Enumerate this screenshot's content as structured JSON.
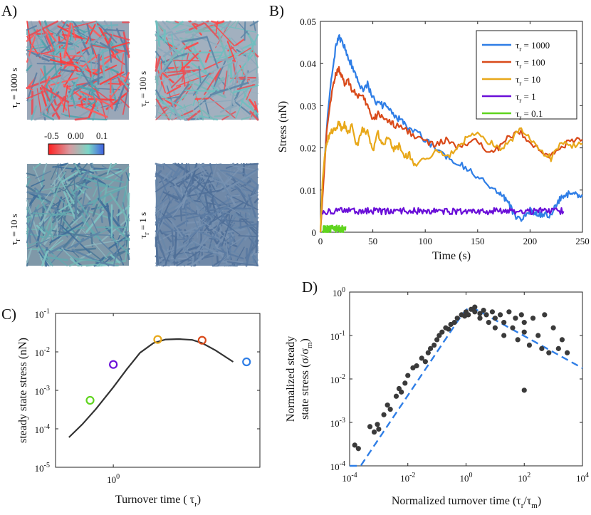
{
  "panels": {
    "A": {
      "label": "A)",
      "snapshots": [
        {
          "label": "τr = 1000 s",
          "label_main": "τ",
          "label_sub": "r",
          "label_rest": " = 1000 s",
          "dominant": "mixed-red"
        },
        {
          "label": "τr = 100 s",
          "label_main": "τ",
          "label_sub": "r",
          "label_rest": " = 100 s",
          "dominant": "mixed"
        },
        {
          "label": "τr = 10 s",
          "label_main": "τ",
          "label_sub": "r",
          "label_rest": " = 10 s",
          "dominant": "teal"
        },
        {
          "label": "τr = 1 s",
          "label_main": "τ",
          "label_sub": "r",
          "label_rest": " = 1 s",
          "dominant": "slate"
        }
      ],
      "colorbar": {
        "ticks": [
          "-0.5",
          "0.00",
          "0.1"
        ],
        "colors": [
          "#ff2020",
          "#d89aa0",
          "#7ad6c6",
          "#3f5fe0"
        ]
      }
    },
    "B": {
      "label": "B)"
    },
    "C": {
      "label": "C)"
    },
    "D": {
      "label": "D)"
    }
  },
  "chart_data": [
    {
      "panel": "B",
      "type": "line",
      "xlabel": "Time (s)",
      "ylabel": "Stress (nN)",
      "xlim": [
        0,
        250
      ],
      "ylim": [
        0,
        0.05
      ],
      "xticks": [
        0,
        50,
        100,
        150,
        200,
        250
      ],
      "yticks": [
        0,
        0.01,
        0.02,
        0.03,
        0.04,
        0.05
      ],
      "ytick_labels": [
        "0",
        "0.01",
        "0.02",
        "0.03",
        "0.04",
        "0.05"
      ],
      "legend_position": "top-right",
      "series": [
        {
          "name": "τr = 1000",
          "legend_main": "τ",
          "legend_sub": "r",
          "legend_rest": " = 1000",
          "color": "#2f7ee6",
          "x": [
            0,
            3,
            7,
            11,
            15,
            18,
            21,
            25,
            30,
            35,
            40,
            45,
            50,
            55,
            60,
            65,
            70,
            75,
            80,
            90,
            100,
            110,
            120,
            130,
            140,
            150,
            160,
            170,
            175,
            180,
            185,
            190,
            195,
            200,
            205,
            210,
            215,
            220,
            225,
            230,
            235,
            240,
            245,
            250
          ],
          "y": [
            0,
            0.014,
            0.028,
            0.038,
            0.0445,
            0.046,
            0.0452,
            0.0425,
            0.0395,
            0.0365,
            0.034,
            0.035,
            0.032,
            0.0305,
            0.03,
            0.0295,
            0.0275,
            0.027,
            0.0255,
            0.024,
            0.022,
            0.02,
            0.018,
            0.0168,
            0.015,
            0.013,
            0.0115,
            0.009,
            0.0085,
            0.0068,
            0.004,
            0.0028,
            0.0042,
            0.0052,
            0.0044,
            0.004,
            0.0043,
            0.0042,
            0.0062,
            0.0085,
            0.009,
            0.0092,
            0.0088,
            0.0085
          ]
        },
        {
          "name": "τr = 100",
          "legend_main": "τ",
          "legend_sub": "r",
          "legend_rest": " = 100",
          "color": "#d94a1a",
          "x": [
            0,
            3,
            6,
            10,
            13,
            16,
            18,
            20,
            23,
            26,
            30,
            35,
            40,
            45,
            50,
            55,
            60,
            65,
            70,
            80,
            90,
            100,
            110,
            120,
            130,
            140,
            150,
            160,
            170,
            180,
            190,
            200,
            210,
            220,
            230,
            240,
            250
          ],
          "y": [
            0,
            0.012,
            0.024,
            0.032,
            0.036,
            0.0382,
            0.0388,
            0.037,
            0.035,
            0.0365,
            0.034,
            0.0325,
            0.032,
            0.03,
            0.0265,
            0.028,
            0.0275,
            0.026,
            0.0255,
            0.0245,
            0.023,
            0.0215,
            0.0205,
            0.022,
            0.02,
            0.021,
            0.0215,
            0.0195,
            0.02,
            0.0225,
            0.024,
            0.0215,
            0.019,
            0.018,
            0.0205,
            0.0215,
            0.022
          ]
        },
        {
          "name": "τr = 10",
          "legend_main": "τ",
          "legend_sub": "r",
          "legend_rest": " = 10",
          "color": "#e8a81a",
          "x": [
            0,
            2,
            4,
            6,
            9,
            12,
            15,
            18,
            20,
            23,
            26,
            30,
            35,
            40,
            45,
            50,
            55,
            60,
            65,
            70,
            75,
            80,
            85,
            90,
            100,
            110,
            120,
            130,
            140,
            150,
            160,
            170,
            180,
            190,
            200,
            210,
            220,
            230,
            240,
            250
          ],
          "y": [
            0,
            0.012,
            0.018,
            0.0215,
            0.0235,
            0.024,
            0.025,
            0.026,
            0.024,
            0.0255,
            0.0235,
            0.025,
            0.0205,
            0.0245,
            0.0235,
            0.0195,
            0.0235,
            0.0205,
            0.0225,
            0.0195,
            0.0205,
            0.018,
            0.0185,
            0.016,
            0.0175,
            0.019,
            0.018,
            0.0195,
            0.0225,
            0.0235,
            0.0215,
            0.02,
            0.021,
            0.0245,
            0.022,
            0.0195,
            0.0175,
            0.0215,
            0.0205,
            0.021
          ]
        },
        {
          "name": "τr = 1",
          "legend_main": "τ",
          "legend_sub": "r",
          "legend_rest": " = 1",
          "color": "#6a0fd8",
          "x": [
            2,
            232
          ],
          "y_mean": 0.005,
          "noise": 0.0008,
          "points": 230
        },
        {
          "name": "τr = 0.1",
          "legend_main": "τ",
          "legend_sub": "r",
          "legend_rest": " = 0.1",
          "color": "#5fd41e",
          "x": [
            2,
            24
          ],
          "y_mean": 0.0007,
          "noise": 0.0009,
          "points": 90
        }
      ]
    },
    {
      "panel": "C",
      "type": "line",
      "xlabel": "Turnover time ( τr)",
      "xlabel_main": "Turnover time ( τ",
      "xlabel_sub": "r",
      "xlabel_end": ")",
      "ylabel": "steady state stress (nN)",
      "xscale": "log",
      "yscale": "log",
      "xlim": [
        0.05,
        2000
      ],
      "ylim": [
        1e-05,
        0.1
      ],
      "xtick_base": "10",
      "xtick_exps": [
        "0"
      ],
      "ytick_base": "10",
      "ytick_exps": [
        "-5",
        "-4",
        "-3",
        "-2",
        "-1"
      ],
      "curve": {
        "color": "#333333",
        "x": [
          0.1,
          0.2,
          0.4,
          1,
          2,
          4,
          8,
          15,
          30,
          60,
          100,
          200,
          500
        ],
        "y": [
          6e-05,
          0.00013,
          0.00032,
          0.0012,
          0.0035,
          0.0095,
          0.017,
          0.021,
          0.0215,
          0.0205,
          0.017,
          0.011,
          0.0055
        ]
      },
      "markers": [
        {
          "x": 0.3,
          "y": 0.00055,
          "color": "#5fd41e"
        },
        {
          "x": 1,
          "y": 0.0047,
          "color": "#6a0fd8"
        },
        {
          "x": 10,
          "y": 0.021,
          "color": "#e8a81a"
        },
        {
          "x": 100,
          "y": 0.02,
          "color": "#d94a1a"
        },
        {
          "x": 1000,
          "y": 0.0055,
          "color": "#2f7ee6"
        }
      ]
    },
    {
      "panel": "D",
      "type": "scatter",
      "xlabel": "Normalized turnover time (τr/τm)",
      "xlabel_main": "Normalized turnover time (τ",
      "xlabel_sub1": "r",
      "xlabel_mid": "/τ",
      "xlabel_sub2": "m",
      "xlabel_end": ")",
      "ylabel_line1": "Normalized steady",
      "ylabel_line2": "state stress (σ/σm)",
      "ylabel_line2_main": "state stress (σ/σ",
      "ylabel_line2_sub": "m",
      "ylabel_line2_end": ")",
      "xscale": "log",
      "yscale": "log",
      "xlim": [
        0.0001,
        10000
      ],
      "ylim": [
        0.0001,
        1
      ],
      "xtick_base": "10",
      "xtick_exps": [
        "-4",
        "-2",
        "0",
        "2",
        "4"
      ],
      "ytick_base": "10",
      "ytick_exps": [
        "-4",
        "-3",
        "-2",
        "-1",
        "0"
      ],
      "fit": {
        "color": "#2f7ee6",
        "style": "dashed",
        "peak_x": 1.2,
        "peak_y": 0.5
      },
      "point_color": "#3a3a3a",
      "points": [
        [
          0.00015,
          0.0003
        ],
        [
          0.0002,
          0.00025
        ],
        [
          0.0005,
          0.0008
        ],
        [
          0.0007,
          0.0006
        ],
        [
          0.0009,
          0.0009
        ],
        [
          0.001,
          0.0007
        ],
        [
          0.0015,
          0.0015
        ],
        [
          0.002,
          0.0025
        ],
        [
          0.0025,
          0.002
        ],
        [
          0.004,
          0.004
        ],
        [
          0.005,
          0.006
        ],
        [
          0.006,
          0.005
        ],
        [
          0.008,
          0.008
        ],
        [
          0.01,
          0.012
        ],
        [
          0.015,
          0.018
        ],
        [
          0.02,
          0.02
        ],
        [
          0.03,
          0.03
        ],
        [
          0.04,
          0.025
        ],
        [
          0.05,
          0.04
        ],
        [
          0.06,
          0.05
        ],
        [
          0.08,
          0.06
        ],
        [
          0.1,
          0.08
        ],
        [
          0.12,
          0.1
        ],
        [
          0.15,
          0.12
        ],
        [
          0.2,
          0.15
        ],
        [
          0.25,
          0.14
        ],
        [
          0.3,
          0.18
        ],
        [
          0.4,
          0.2
        ],
        [
          0.5,
          0.25
        ],
        [
          0.7,
          0.3
        ],
        [
          0.9,
          0.28
        ],
        [
          1,
          0.35
        ],
        [
          1.2,
          0.3
        ],
        [
          1.5,
          0.4
        ],
        [
          2,
          0.35
        ],
        [
          2,
          0.45
        ],
        [
          3,
          0.32
        ],
        [
          3,
          0.25
        ],
        [
          4,
          0.38
        ],
        [
          5,
          0.3
        ],
        [
          6,
          0.2
        ],
        [
          8,
          0.35
        ],
        [
          10,
          0.25
        ],
        [
          10,
          0.15
        ],
        [
          15,
          0.3
        ],
        [
          20,
          0.2
        ],
        [
          20,
          0.1
        ],
        [
          30,
          0.35
        ],
        [
          40,
          0.15
        ],
        [
          50,
          0.25
        ],
        [
          60,
          0.08
        ],
        [
          80,
          0.3
        ],
        [
          100,
          0.12
        ],
        [
          100,
          0.2
        ],
        [
          150,
          0.06
        ],
        [
          200,
          0.25
        ],
        [
          300,
          0.1
        ],
        [
          400,
          0.05
        ],
        [
          500,
          0.3
        ],
        [
          700,
          0.04
        ],
        [
          1000,
          0.15
        ],
        [
          1500,
          0.05
        ],
        [
          2000,
          0.08
        ],
        [
          3000,
          0.04
        ],
        [
          100,
          0.0055
        ]
      ]
    }
  ]
}
